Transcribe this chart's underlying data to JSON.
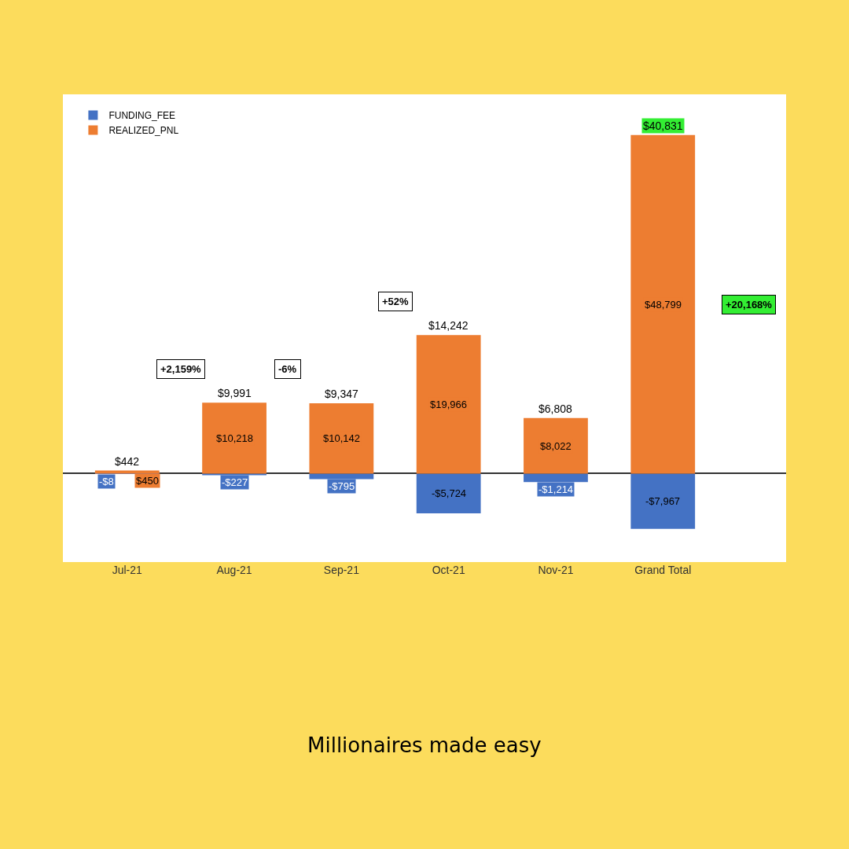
{
  "chart_data": {
    "type": "bar",
    "title": "Millionaires made easy",
    "categories": [
      "Jul-21",
      "Aug-21",
      "Sep-21",
      "Oct-21",
      "Nov-21",
      "Grand Total"
    ],
    "stacked": true,
    "legend": "top left",
    "grid": false,
    "series": [
      {
        "name": "FUNDING_FEE",
        "color": "#4472c4",
        "values": [
          -8,
          -227,
          -795,
          -5724,
          -1214,
          -7967
        ],
        "value_labels": [
          "-$8",
          "-$227",
          "-$795",
          "-$5,724",
          "-$1,214",
          "-$7,967"
        ]
      },
      {
        "name": "REALIZED_PNL",
        "color": "#ed7d31",
        "values": [
          450,
          10218,
          10142,
          19966,
          8022,
          48799
        ],
        "value_labels": [
          "$450",
          "$10,218",
          "$10,142",
          "$19,966",
          "$8,022",
          "$48,799"
        ]
      }
    ],
    "totals": [
      "$442",
      "$9,991",
      "$9,347",
      "$14,242",
      "$6,808",
      "$40,831"
    ],
    "annotations": [
      "+2,159%",
      "-6%",
      "+52%",
      "+20,168%"
    ]
  }
}
